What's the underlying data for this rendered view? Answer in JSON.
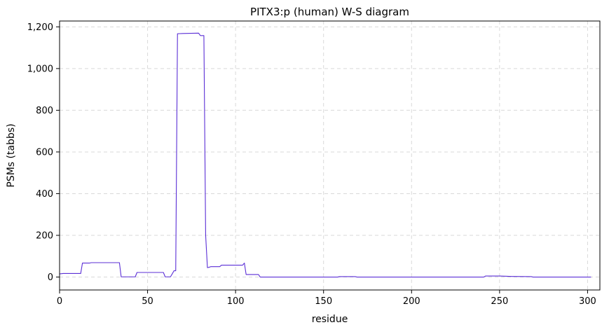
{
  "chart_data": {
    "type": "line",
    "title": "PITX3:p (human) W-S diagram",
    "xlabel": "residue",
    "ylabel": "PSMs (tabbs)",
    "xlim": [
      0,
      307
    ],
    "ylim": [
      -62,
      1228
    ],
    "x_ticks": [
      0,
      50,
      100,
      150,
      200,
      250,
      300
    ],
    "x_tick_labels": [
      "0",
      "50",
      "100",
      "150",
      "200",
      "250",
      "300"
    ],
    "y_ticks": [
      0,
      200,
      400,
      600,
      800,
      1000,
      1200
    ],
    "y_tick_labels": [
      "0",
      "200",
      "400",
      "600",
      "800",
      "1,000",
      "1,200"
    ],
    "grid": true,
    "grid_style": "dashed",
    "line_color": "#5b2fd6",
    "series": [
      {
        "x": [
          0,
          2,
          3,
          12,
          13,
          17,
          18,
          34,
          35,
          43,
          44,
          59,
          60,
          63,
          64,
          65,
          66,
          67,
          70,
          79,
          80,
          82,
          83,
          84,
          85,
          86,
          88,
          91,
          92,
          104,
          105,
          106,
          110,
          113,
          114,
          158,
          159,
          168,
          169,
          241,
          242,
          250,
          257,
          258,
          268,
          269,
          302
        ],
        "y": [
          15,
          17,
          17,
          17,
          67,
          67,
          69,
          69,
          1,
          1,
          22,
          22,
          1,
          1,
          15,
          30,
          30,
          1167,
          1168,
          1170,
          1158,
          1158,
          200,
          45,
          47,
          50,
          50,
          50,
          57,
          57,
          67,
          12,
          12,
          12,
          0,
          0,
          2,
          2,
          0,
          0,
          5,
          5,
          3,
          3,
          2,
          0,
          0
        ]
      }
    ]
  }
}
